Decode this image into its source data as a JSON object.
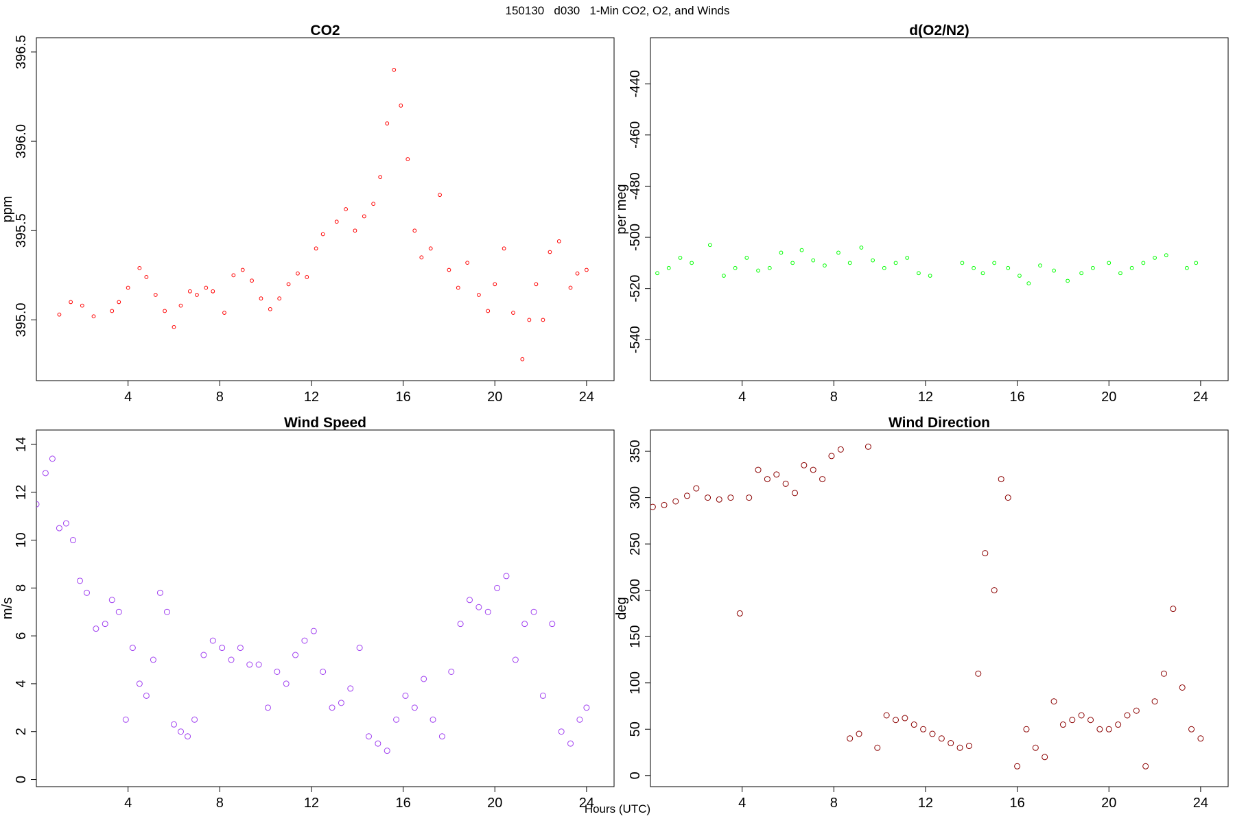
{
  "figure": {
    "title": "150130   d030   1-Min CO2, O2, and Winds",
    "xlabel": "Hours (UTC)"
  },
  "chart_data": [
    {
      "type": "scatter",
      "title": "CO2",
      "ylabel": "ppm",
      "xlabel": "",
      "xlim": [
        0,
        25.2
      ],
      "ylim": [
        394.66,
        396.58
      ],
      "xticks": [
        4,
        8,
        12,
        16,
        20,
        24
      ],
      "yticks": [
        395.0,
        395.5,
        396.0,
        396.5
      ],
      "ytick_labels": [
        "395.0",
        "395.5",
        "396.0",
        "396.5"
      ],
      "marker": "circle",
      "color": "#ff0000",
      "series": [
        {
          "x": [
            1.0,
            1.5,
            2.0,
            2.5,
            3.3,
            3.6,
            4.0,
            4.5,
            4.8,
            5.2,
            5.6,
            6.0,
            6.3,
            6.7,
            7.0,
            7.4,
            7.7,
            8.2,
            8.6,
            9.0,
            9.4,
            9.8,
            10.2,
            10.6,
            11.0,
            11.4,
            11.8,
            12.2,
            12.5,
            13.1,
            13.5,
            13.9,
            14.3,
            14.7,
            15.0,
            15.3,
            15.6,
            15.9,
            16.2,
            16.5,
            16.8,
            17.2,
            17.6,
            18.0,
            18.4,
            18.8,
            19.3,
            19.7,
            20.0,
            20.4,
            20.8,
            21.2,
            21.5,
            21.8,
            22.1,
            22.4,
            22.8,
            23.3,
            23.6,
            24.0
          ],
          "y": [
            395.03,
            395.1,
            395.08,
            395.02,
            395.05,
            395.1,
            395.18,
            395.29,
            395.24,
            395.14,
            395.05,
            394.96,
            395.08,
            395.16,
            395.14,
            395.18,
            395.16,
            395.04,
            395.25,
            395.28,
            395.22,
            395.12,
            395.06,
            395.12,
            395.2,
            395.26,
            395.24,
            395.4,
            395.48,
            395.55,
            395.62,
            395.5,
            395.58,
            395.65,
            395.8,
            396.1,
            396.4,
            396.2,
            395.9,
            395.5,
            395.35,
            395.4,
            395.7,
            395.28,
            395.18,
            395.32,
            395.14,
            395.05,
            395.2,
            395.4,
            395.04,
            394.78,
            395.0,
            395.2,
            395.0,
            395.38,
            395.44,
            395.18,
            395.26,
            395.28
          ]
        }
      ]
    },
    {
      "type": "scatter",
      "title": "d(O2/N2)",
      "ylabel": "per meg",
      "xlabel": "",
      "xlim": [
        0,
        25.2
      ],
      "ylim": [
        -556,
        -422
      ],
      "xticks": [
        4,
        8,
        12,
        16,
        20,
        24
      ],
      "yticks": [
        -540,
        -520,
        -500,
        -480,
        -460,
        -440
      ],
      "ytick_labels": [
        "-540",
        "-520",
        "-500",
        "-480",
        "-460",
        "-440"
      ],
      "marker": "circle",
      "color": "#00ff00",
      "series": [
        {
          "x": [
            0.3,
            0.8,
            1.3,
            1.8,
            2.6,
            3.2,
            3.7,
            4.2,
            4.7,
            5.2,
            5.7,
            6.2,
            6.6,
            7.1,
            7.6,
            8.2,
            8.7,
            9.2,
            9.7,
            10.2,
            10.7,
            11.2,
            11.7,
            12.2,
            13.6,
            14.1,
            14.5,
            15.0,
            15.6,
            16.1,
            16.5,
            17.0,
            17.6,
            18.2,
            18.8,
            19.3,
            20.0,
            20.5,
            21.0,
            21.5,
            22.0,
            22.5,
            23.4,
            23.8
          ],
          "y": [
            -514,
            -512,
            -508,
            -510,
            -503,
            -515,
            -512,
            -508,
            -513,
            -512,
            -506,
            -510,
            -505,
            -509,
            -511,
            -506,
            -510,
            -504,
            -509,
            -512,
            -510,
            -508,
            -514,
            -515,
            -510,
            -512,
            -514,
            -510,
            -512,
            -515,
            -518,
            -511,
            -513,
            -517,
            -514,
            -512,
            -510,
            -514,
            -512,
            -510,
            -508,
            -507,
            -512,
            -510
          ]
        }
      ]
    },
    {
      "type": "scatter",
      "title": "Wind Speed",
      "ylabel": "m/s",
      "xlabel": "",
      "xlim": [
        0,
        25.2
      ],
      "ylim": [
        -0.3,
        14.6
      ],
      "xticks": [
        4,
        8,
        12,
        16,
        20,
        24
      ],
      "yticks": [
        0,
        2,
        4,
        6,
        8,
        10,
        12,
        14
      ],
      "ytick_labels": [
        "0",
        "2",
        "4",
        "6",
        "8",
        "10",
        "12",
        "14"
      ],
      "marker": "circle",
      "color": "#a040f0",
      "series": [
        {
          "x": [
            0.0,
            0.4,
            0.7,
            1.0,
            1.3,
            1.6,
            1.9,
            2.2,
            2.6,
            3.0,
            3.3,
            3.6,
            3.9,
            4.2,
            4.5,
            4.8,
            5.1,
            5.4,
            5.7,
            6.0,
            6.3,
            6.6,
            6.9,
            7.3,
            7.7,
            8.1,
            8.5,
            8.9,
            9.3,
            9.7,
            10.1,
            10.5,
            10.9,
            11.3,
            11.7,
            12.1,
            12.5,
            12.9,
            13.3,
            13.7,
            14.1,
            14.5,
            14.9,
            15.3,
            15.7,
            16.1,
            16.5,
            16.9,
            17.3,
            17.7,
            18.1,
            18.5,
            18.9,
            19.3,
            19.7,
            20.1,
            20.5,
            20.9,
            21.3,
            21.7,
            22.1,
            22.5,
            22.9,
            23.3,
            23.7,
            24.0
          ],
          "y": [
            11.5,
            12.8,
            13.4,
            10.5,
            10.7,
            10.0,
            8.3,
            7.8,
            6.3,
            6.5,
            7.5,
            7.0,
            2.5,
            5.5,
            4.0,
            3.5,
            5.0,
            7.8,
            7.0,
            2.3,
            2.0,
            1.8,
            2.5,
            5.2,
            5.8,
            5.5,
            5.0,
            5.5,
            4.8,
            4.8,
            3.0,
            4.5,
            4.0,
            5.2,
            5.8,
            6.2,
            4.5,
            3.0,
            3.2,
            3.8,
            5.5,
            1.8,
            1.5,
            1.2,
            2.5,
            3.5,
            3.0,
            4.2,
            2.5,
            1.8,
            4.5,
            6.5,
            7.5,
            7.2,
            7.0,
            8.0,
            8.5,
            5.0,
            6.5,
            7.0,
            3.5,
            6.5,
            2.0,
            1.5,
            2.5,
            3.0
          ]
        }
      ]
    },
    {
      "type": "scatter",
      "title": "Wind Direction",
      "ylabel": "deg",
      "xlabel": "",
      "xlim": [
        0,
        25.2
      ],
      "ylim": [
        -12,
        373
      ],
      "xticks": [
        4,
        8,
        12,
        16,
        20,
        24
      ],
      "yticks": [
        0,
        50,
        100,
        150,
        200,
        250,
        300,
        350
      ],
      "ytick_labels": [
        "0",
        "50",
        "100",
        "150",
        "200",
        "250",
        "300",
        "350"
      ],
      "marker": "circle",
      "color": "#8b0000",
      "series": [
        {
          "x": [
            0.1,
            0.6,
            1.1,
            1.6,
            2.0,
            2.5,
            3.0,
            3.5,
            3.9,
            4.3,
            4.7,
            5.1,
            5.5,
            5.9,
            6.3,
            6.7,
            7.1,
            7.5,
            7.9,
            8.3,
            8.7,
            9.1,
            9.5,
            9.9,
            10.3,
            10.7,
            11.1,
            11.5,
            11.9,
            12.3,
            12.7,
            13.1,
            13.5,
            13.9,
            14.3,
            14.6,
            15.0,
            15.3,
            15.6,
            16.0,
            16.4,
            16.8,
            17.2,
            17.6,
            18.0,
            18.4,
            18.8,
            19.2,
            19.6,
            20.0,
            20.4,
            20.8,
            21.2,
            21.6,
            22.0,
            22.4,
            22.8,
            23.2,
            23.6,
            24.0
          ],
          "y": [
            290,
            292,
            296,
            302,
            310,
            300,
            298,
            300,
            175,
            300,
            330,
            320,
            325,
            315,
            305,
            335,
            330,
            320,
            345,
            352,
            40,
            45,
            355,
            30,
            65,
            60,
            62,
            55,
            50,
            45,
            40,
            35,
            30,
            32,
            110,
            240,
            200,
            320,
            300,
            10,
            50,
            30,
            20,
            80,
            55,
            60,
            65,
            60,
            50,
            50,
            55,
            65,
            70,
            10,
            80,
            110,
            180,
            95,
            50,
            40
          ]
        }
      ]
    }
  ]
}
